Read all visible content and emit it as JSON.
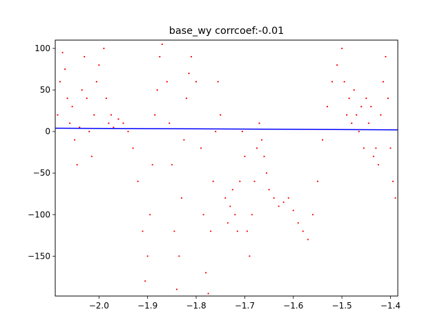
{
  "chart_data": {
    "type": "scatter",
    "title": "base_wy corrcoef:-0.01",
    "xlabel": "",
    "ylabel": "",
    "xlim": [
      -2.09,
      -1.385
    ],
    "ylim": [
      -198,
      110
    ],
    "x_ticks": [
      -2.0,
      -1.9,
      -1.8,
      -1.7,
      -1.6,
      -1.5,
      -1.4
    ],
    "x_tick_labels": [
      "−2.0",
      "−1.9",
      "−1.8",
      "−1.7",
      "−1.6",
      "−1.5",
      "−1.4"
    ],
    "y_ticks": [
      -150,
      -100,
      -50,
      0,
      50,
      100
    ],
    "y_tick_labels": [
      "−150",
      "−100",
      "−50",
      "0",
      "50",
      "100"
    ],
    "grid": false,
    "colors": {
      "points": "#ff0000",
      "fit_line": "#0000ff"
    },
    "series": [
      {
        "marker": "dot",
        "points": [
          [
            -2.085,
            20
          ],
          [
            -2.08,
            60
          ],
          [
            -2.075,
            95
          ],
          [
            -2.07,
            75
          ],
          [
            -2.065,
            40
          ],
          [
            -2.06,
            10
          ],
          [
            -2.055,
            30
          ],
          [
            -2.05,
            -10
          ],
          [
            -2.045,
            -40
          ],
          [
            -2.04,
            5
          ],
          [
            -2.035,
            50
          ],
          [
            -2.03,
            90
          ],
          [
            -2.025,
            40
          ],
          [
            -2.02,
            0
          ],
          [
            -2.015,
            -30
          ],
          [
            -2.01,
            20
          ],
          [
            -2.005,
            60
          ],
          [
            -2.0,
            80
          ],
          [
            -1.99,
            100
          ],
          [
            -1.985,
            40
          ],
          [
            -1.98,
            10
          ],
          [
            -1.975,
            20
          ],
          [
            -1.97,
            5
          ],
          [
            -1.96,
            15
          ],
          [
            -1.95,
            10
          ],
          [
            -1.94,
            0
          ],
          [
            -1.93,
            -20
          ],
          [
            -1.92,
            -60
          ],
          [
            -1.91,
            -120
          ],
          [
            -1.905,
            -180
          ],
          [
            -1.9,
            -150
          ],
          [
            -1.895,
            -100
          ],
          [
            -1.89,
            -40
          ],
          [
            -1.885,
            20
          ],
          [
            -1.88,
            50
          ],
          [
            -1.875,
            90
          ],
          [
            -1.87,
            105
          ],
          [
            -1.86,
            60
          ],
          [
            -1.855,
            10
          ],
          [
            -1.85,
            -40
          ],
          [
            -1.845,
            -120
          ],
          [
            -1.84,
            -190
          ],
          [
            -1.835,
            -150
          ],
          [
            -1.83,
            -80
          ],
          [
            -1.825,
            -10
          ],
          [
            -1.82,
            40
          ],
          [
            -1.815,
            70
          ],
          [
            -1.81,
            90
          ],
          [
            -1.8,
            60
          ],
          [
            -1.79,
            -20
          ],
          [
            -1.785,
            -100
          ],
          [
            -1.78,
            -170
          ],
          [
            -1.775,
            -195
          ],
          [
            -1.77,
            -120
          ],
          [
            -1.765,
            -60
          ],
          [
            -1.76,
            0
          ],
          [
            -1.755,
            60
          ],
          [
            -1.75,
            20
          ],
          [
            -1.74,
            -80
          ],
          [
            -1.735,
            -110
          ],
          [
            -1.73,
            -90
          ],
          [
            -1.725,
            -70
          ],
          [
            -1.72,
            -100
          ],
          [
            -1.715,
            -120
          ],
          [
            -1.71,
            -60
          ],
          [
            -1.705,
            0
          ],
          [
            -1.7,
            -30
          ],
          [
            -1.695,
            -120
          ],
          [
            -1.69,
            -150
          ],
          [
            -1.685,
            -100
          ],
          [
            -1.68,
            -60
          ],
          [
            -1.675,
            -20
          ],
          [
            -1.67,
            10
          ],
          [
            -1.665,
            -10
          ],
          [
            -1.66,
            -30
          ],
          [
            -1.655,
            -50
          ],
          [
            -1.65,
            -70
          ],
          [
            -1.64,
            -80
          ],
          [
            -1.63,
            -90
          ],
          [
            -1.62,
            -85
          ],
          [
            -1.61,
            -80
          ],
          [
            -1.6,
            -95
          ],
          [
            -1.59,
            -110
          ],
          [
            -1.58,
            -120
          ],
          [
            -1.57,
            -130
          ],
          [
            -1.56,
            -100
          ],
          [
            -1.55,
            -60
          ],
          [
            -1.54,
            -10
          ],
          [
            -1.53,
            30
          ],
          [
            -1.52,
            60
          ],
          [
            -1.51,
            80
          ],
          [
            -1.5,
            100
          ],
          [
            -1.495,
            60
          ],
          [
            -1.49,
            20
          ],
          [
            -1.485,
            40
          ],
          [
            -1.48,
            10
          ],
          [
            -1.475,
            50
          ],
          [
            -1.47,
            20
          ],
          [
            -1.465,
            0
          ],
          [
            -1.46,
            30
          ],
          [
            -1.455,
            -20
          ],
          [
            -1.45,
            40
          ],
          [
            -1.445,
            10
          ],
          [
            -1.44,
            30
          ],
          [
            -1.435,
            -30
          ],
          [
            -1.43,
            -20
          ],
          [
            -1.425,
            -40
          ],
          [
            -1.42,
            20
          ],
          [
            -1.415,
            60
          ],
          [
            -1.41,
            90
          ],
          [
            -1.405,
            40
          ],
          [
            -1.4,
            -20
          ],
          [
            -1.395,
            -60
          ],
          [
            -1.39,
            -80
          ]
        ]
      },
      {
        "marker": "line",
        "x": [
          -2.09,
          -1.385
        ],
        "y": [
          4,
          2
        ]
      }
    ]
  }
}
